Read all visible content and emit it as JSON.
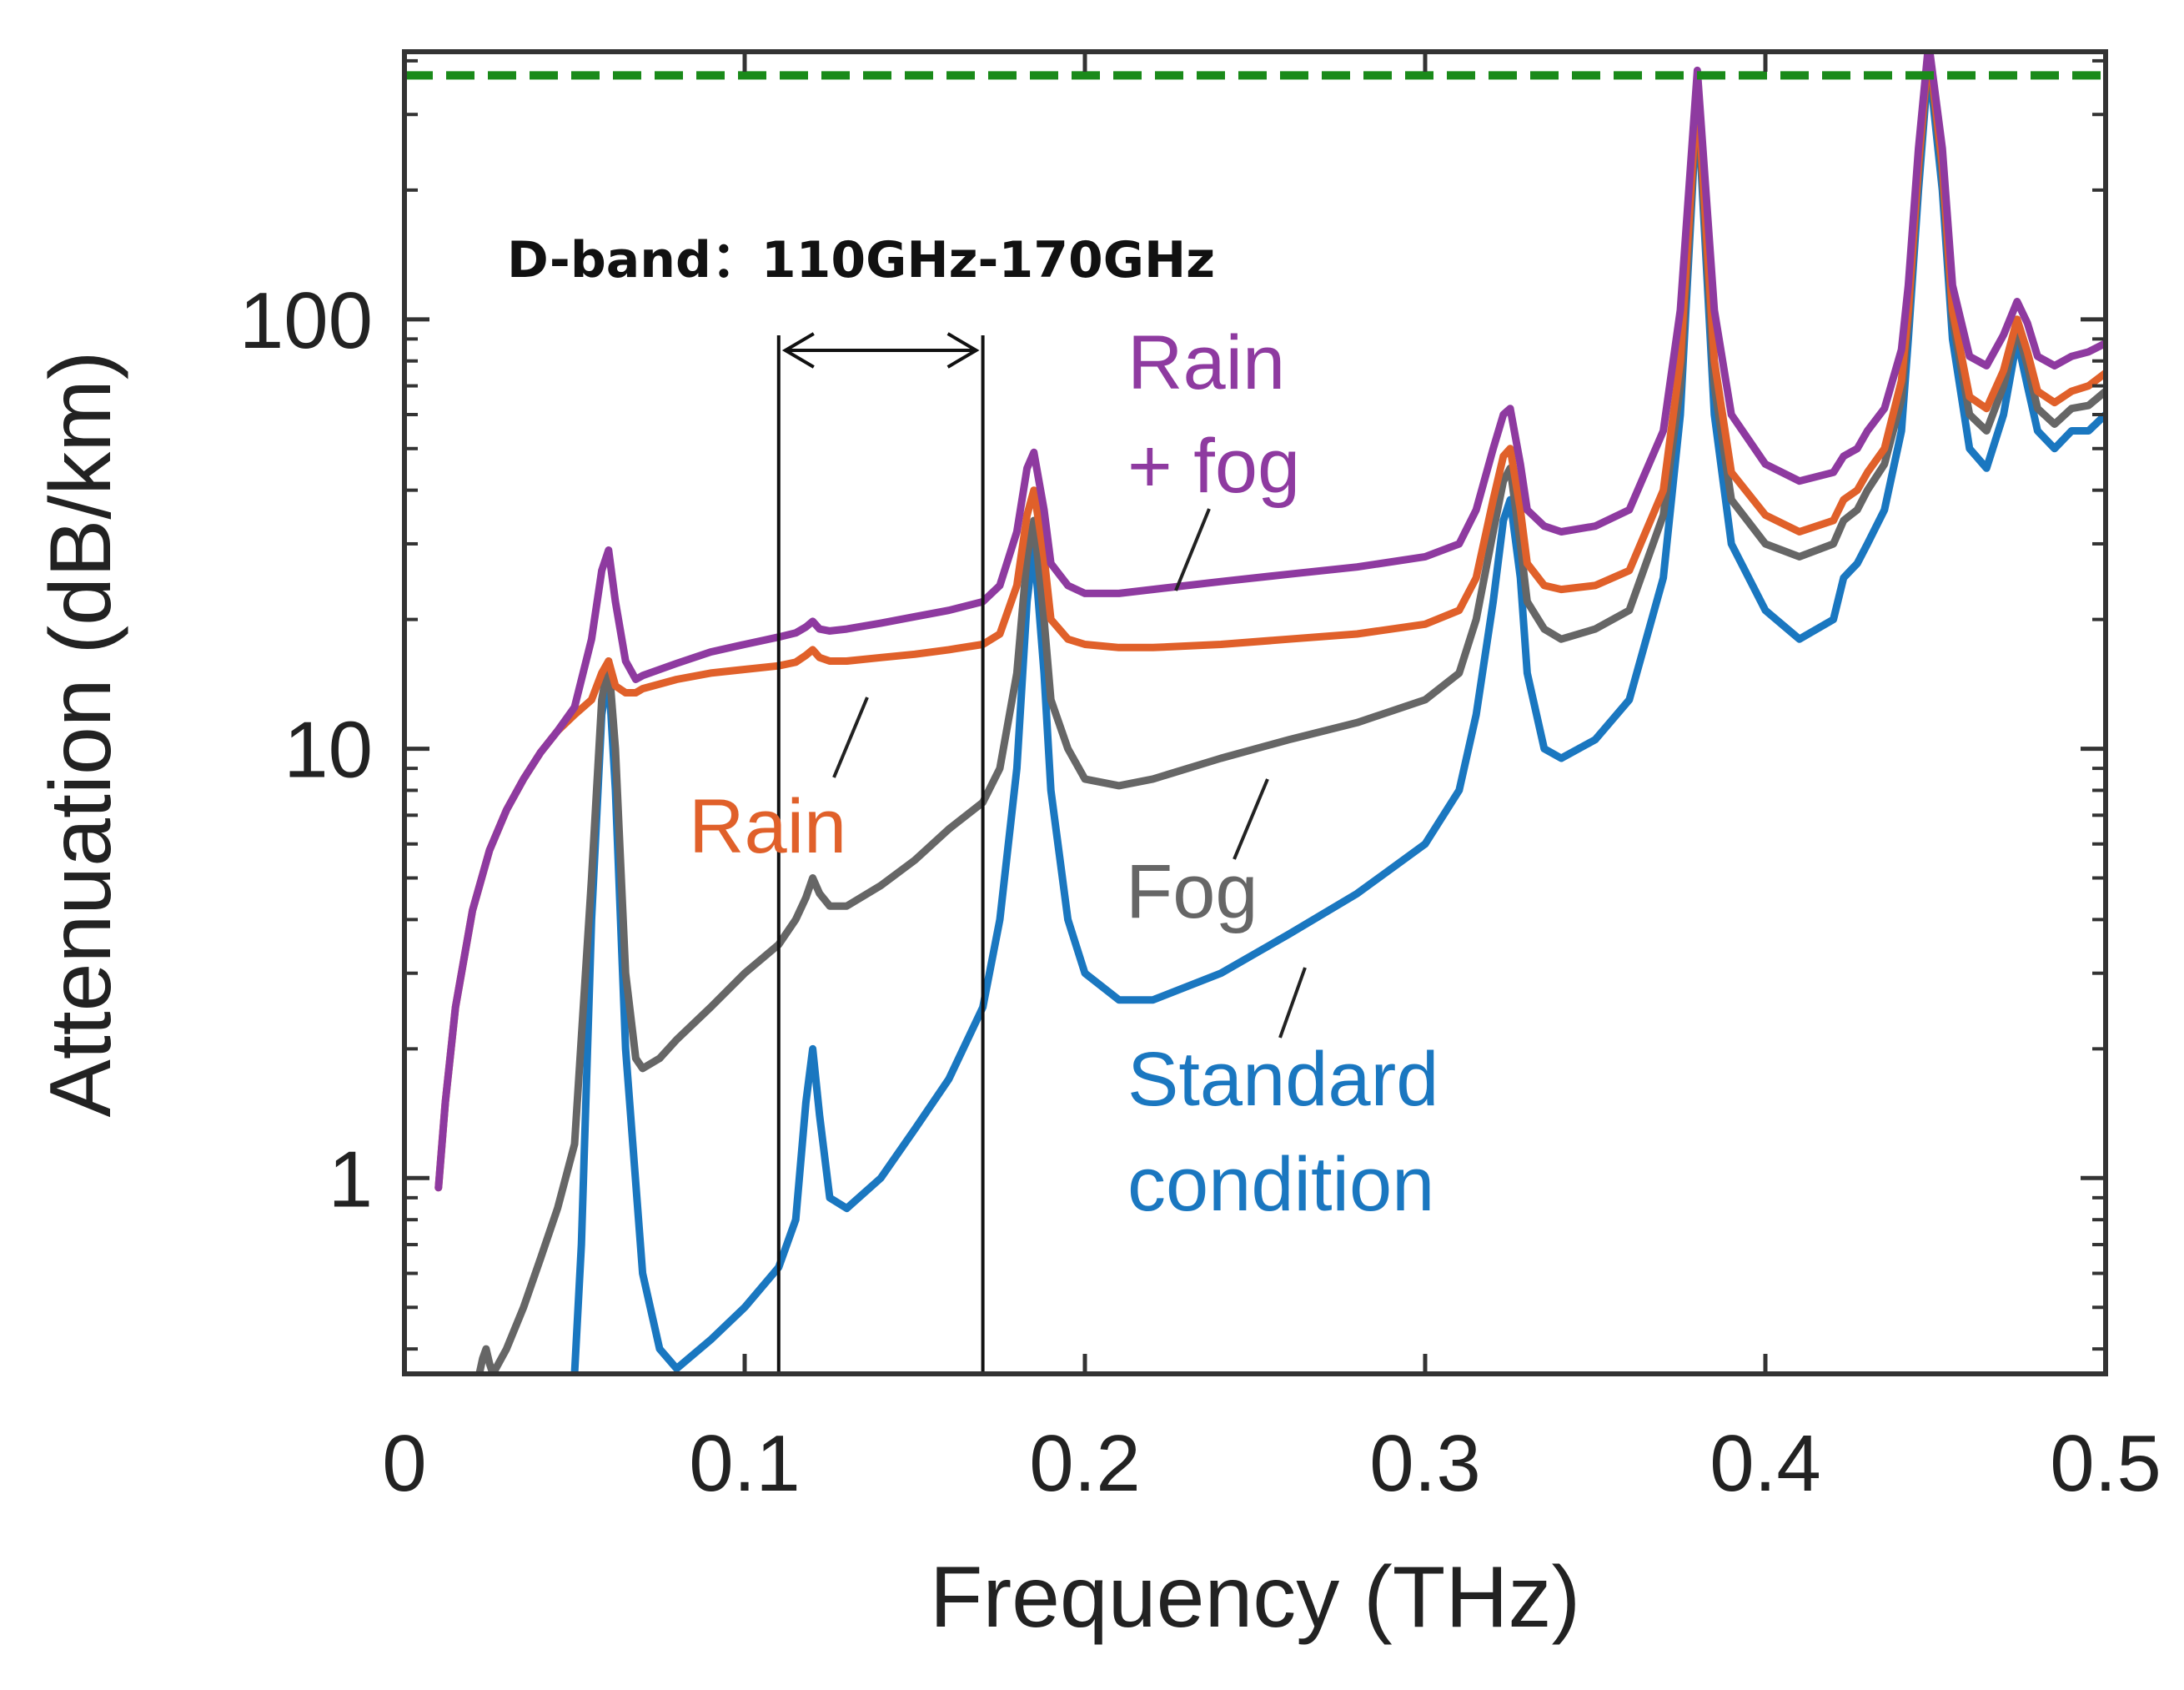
{
  "chart_data": {
    "type": "line",
    "title": "",
    "xlabel": "Frequency (THz)",
    "ylabel": "Attenuation (dB/km)",
    "xlim": [
      0,
      0.5
    ],
    "ylim": [
      0.35,
      420
    ],
    "yscale": "log",
    "x_ticks": [
      {
        "value": 0,
        "label": "0"
      },
      {
        "value": 0.1,
        "label": "0.1"
      },
      {
        "value": 0.2,
        "label": "0.2"
      },
      {
        "value": 0.3,
        "label": "0.3"
      },
      {
        "value": 0.4,
        "label": "0.4"
      },
      {
        "value": 0.5,
        "label": "0.5"
      }
    ],
    "y_ticks": [
      {
        "value": 1,
        "label": "1"
      },
      {
        "value": 10,
        "label": "10"
      },
      {
        "value": 100,
        "label": "100"
      }
    ],
    "reference_line": {
      "y": 370,
      "color": "#1a8a1a",
      "style": "dashed"
    },
    "band": {
      "label": "D-band：110GHz-170GHz",
      "x_start": 0.11,
      "x_end": 0.17
    },
    "series": [
      {
        "name": "Standard condition",
        "label_lines": [
          "Standard",
          "condition"
        ],
        "color": "#1a77c0",
        "x": [
          0.05,
          0.052,
          0.055,
          0.058,
          0.06,
          0.062,
          0.065,
          0.07,
          0.075,
          0.08,
          0.09,
          0.1,
          0.11,
          0.115,
          0.118,
          0.12,
          0.122,
          0.125,
          0.13,
          0.14,
          0.15,
          0.16,
          0.17,
          0.175,
          0.18,
          0.183,
          0.185,
          0.188,
          0.19,
          0.195,
          0.2,
          0.21,
          0.22,
          0.24,
          0.26,
          0.28,
          0.3,
          0.31,
          0.315,
          0.32,
          0.323,
          0.325,
          0.328,
          0.33,
          0.335,
          0.34,
          0.35,
          0.36,
          0.37,
          0.375,
          0.38,
          0.385,
          0.39,
          0.4,
          0.41,
          0.42,
          0.423,
          0.425,
          0.427,
          0.43,
          0.435,
          0.44,
          0.442,
          0.445,
          0.448,
          0.452,
          0.455,
          0.46,
          0.465,
          0.47,
          0.474,
          0.477,
          0.48,
          0.485,
          0.49,
          0.495,
          0.5
        ],
        "values": [
          0.35,
          0.7,
          4,
          12,
          15,
          8,
          2,
          0.6,
          0.4,
          0.36,
          0.42,
          0.5,
          0.62,
          0.8,
          1.5,
          2.0,
          1.4,
          0.9,
          0.85,
          1.0,
          1.3,
          1.7,
          2.5,
          4,
          9,
          22,
          30,
          15,
          8,
          4,
          3,
          2.6,
          2.6,
          3,
          3.7,
          4.6,
          6,
          8,
          12,
          22,
          34,
          38,
          25,
          15,
          10,
          9.5,
          10.5,
          13,
          25,
          60,
          330,
          60,
          30,
          21,
          18,
          20,
          25,
          26,
          27,
          30,
          36,
          55,
          90,
          200,
          400,
          200,
          90,
          50,
          45,
          60,
          90,
          70,
          55,
          50,
          55,
          55,
          60
        ]
      },
      {
        "name": "Fog",
        "label_lines": [
          "Fog"
        ],
        "color": "#666666",
        "x": [
          0.022,
          0.023,
          0.024,
          0.025,
          0.026,
          0.03,
          0.035,
          0.04,
          0.045,
          0.05,
          0.055,
          0.058,
          0.06,
          0.062,
          0.065,
          0.068,
          0.07,
          0.075,
          0.08,
          0.09,
          0.1,
          0.11,
          0.115,
          0.118,
          0.12,
          0.122,
          0.125,
          0.13,
          0.14,
          0.15,
          0.16,
          0.17,
          0.175,
          0.18,
          0.183,
          0.185,
          0.188,
          0.19,
          0.195,
          0.2,
          0.21,
          0.22,
          0.24,
          0.26,
          0.28,
          0.3,
          0.31,
          0.315,
          0.32,
          0.323,
          0.325,
          0.328,
          0.33,
          0.335,
          0.34,
          0.35,
          0.36,
          0.37,
          0.375,
          0.38,
          0.385,
          0.39,
          0.4,
          0.41,
          0.42,
          0.423,
          0.425,
          0.427,
          0.43,
          0.435,
          0.44,
          0.442,
          0.445,
          0.448,
          0.452,
          0.455,
          0.46,
          0.465,
          0.47,
          0.474,
          0.477,
          0.48,
          0.485,
          0.49,
          0.495,
          0.5
        ],
        "values": [
          0.35,
          0.38,
          0.4,
          0.37,
          0.35,
          0.4,
          0.5,
          0.65,
          0.85,
          1.2,
          5,
          13,
          16,
          10,
          3,
          1.9,
          1.8,
          1.9,
          2.1,
          2.5,
          3.0,
          3.5,
          4.0,
          4.5,
          5.0,
          4.6,
          4.3,
          4.3,
          4.8,
          5.5,
          6.5,
          7.5,
          9,
          15,
          28,
          34,
          20,
          13,
          10,
          8.5,
          8.2,
          8.5,
          9.5,
          10.5,
          11.5,
          13,
          15,
          20,
          32,
          42,
          45,
          30,
          22,
          19,
          18,
          19,
          21,
          35,
          70,
          340,
          70,
          38,
          30,
          28,
          30,
          34,
          35,
          36,
          40,
          46,
          65,
          100,
          220,
          420,
          220,
          100,
          60,
          55,
          70,
          95,
          78,
          62,
          57,
          62,
          63,
          68
        ]
      },
      {
        "name": "Rain",
        "label_lines": [
          "Rain"
        ],
        "color": "#e0602a",
        "x": [
          0.01,
          0.012,
          0.015,
          0.02,
          0.025,
          0.03,
          0.035,
          0.04,
          0.045,
          0.05,
          0.055,
          0.058,
          0.06,
          0.062,
          0.065,
          0.068,
          0.07,
          0.08,
          0.09,
          0.1,
          0.11,
          0.115,
          0.118,
          0.12,
          0.122,
          0.125,
          0.13,
          0.14,
          0.15,
          0.16,
          0.17,
          0.175,
          0.18,
          0.183,
          0.185,
          0.188,
          0.19,
          0.195,
          0.2,
          0.21,
          0.22,
          0.24,
          0.26,
          0.28,
          0.3,
          0.31,
          0.315,
          0.32,
          0.323,
          0.325,
          0.328,
          0.33,
          0.335,
          0.34,
          0.35,
          0.36,
          0.37,
          0.375,
          0.38,
          0.385,
          0.39,
          0.4,
          0.41,
          0.42,
          0.423,
          0.425,
          0.427,
          0.43,
          0.435,
          0.44,
          0.442,
          0.445,
          0.448,
          0.452,
          0.455,
          0.46,
          0.465,
          0.47,
          0.474,
          0.477,
          0.48,
          0.485,
          0.49,
          0.495,
          0.5
        ],
        "values": [
          0.95,
          1.5,
          2.5,
          4.2,
          5.8,
          7.2,
          8.5,
          9.8,
          11,
          12,
          13,
          15,
          16,
          14,
          13.5,
          13.5,
          13.8,
          14.5,
          15,
          15.3,
          15.6,
          15.9,
          16.5,
          17,
          16.3,
          16,
          16,
          16.3,
          16.6,
          17,
          17.5,
          18.5,
          24,
          35,
          40,
          28,
          20,
          18,
          17.5,
          17.2,
          17.2,
          17.5,
          18,
          18.5,
          19.5,
          21,
          25,
          38,
          48,
          50,
          36,
          27,
          24,
          23.5,
          24,
          26,
          40,
          80,
          350,
          80,
          44,
          35,
          32,
          34,
          38,
          39,
          40,
          44,
          50,
          72,
          105,
          230,
          430,
          230,
          105,
          66,
          62,
          76,
          100,
          84,
          68,
          64,
          68,
          70,
          75
        ]
      },
      {
        "name": "Rain + fog",
        "label_lines": [
          "Rain",
          "+ fog"
        ],
        "color": "#8e3aa0",
        "x": [
          0.01,
          0.012,
          0.015,
          0.02,
          0.025,
          0.03,
          0.035,
          0.04,
          0.045,
          0.05,
          0.055,
          0.058,
          0.06,
          0.062,
          0.065,
          0.068,
          0.07,
          0.08,
          0.09,
          0.1,
          0.11,
          0.115,
          0.118,
          0.12,
          0.122,
          0.125,
          0.13,
          0.14,
          0.15,
          0.16,
          0.17,
          0.175,
          0.18,
          0.183,
          0.185,
          0.188,
          0.19,
          0.195,
          0.2,
          0.21,
          0.22,
          0.24,
          0.26,
          0.28,
          0.3,
          0.31,
          0.315,
          0.32,
          0.323,
          0.325,
          0.328,
          0.33,
          0.335,
          0.34,
          0.35,
          0.36,
          0.37,
          0.375,
          0.38,
          0.385,
          0.39,
          0.4,
          0.41,
          0.42,
          0.423,
          0.425,
          0.427,
          0.43,
          0.435,
          0.44,
          0.442,
          0.445,
          0.448,
          0.452,
          0.455,
          0.46,
          0.465,
          0.47,
          0.474,
          0.477,
          0.48,
          0.485,
          0.49,
          0.495,
          0.5
        ],
        "values": [
          0.95,
          1.5,
          2.5,
          4.2,
          5.8,
          7.2,
          8.5,
          9.8,
          11,
          12.5,
          18,
          26,
          29,
          22,
          16,
          14.5,
          14.8,
          15.8,
          16.8,
          17.5,
          18.2,
          18.6,
          19.2,
          19.8,
          19.0,
          18.8,
          19.0,
          19.6,
          20.3,
          21,
          22,
          24,
          32,
          45,
          49,
          36,
          27,
          24,
          23,
          23,
          23.5,
          24.5,
          25.5,
          26.5,
          28,
          30,
          36,
          50,
          60,
          62,
          46,
          36,
          33,
          32,
          33,
          36,
          55,
          105,
          380,
          105,
          60,
          46,
          42,
          44,
          48,
          49,
          50,
          55,
          62,
          85,
          120,
          250,
          440,
          250,
          120,
          82,
          78,
          92,
          110,
          98,
          82,
          78,
          82,
          84,
          88
        ]
      }
    ]
  }
}
